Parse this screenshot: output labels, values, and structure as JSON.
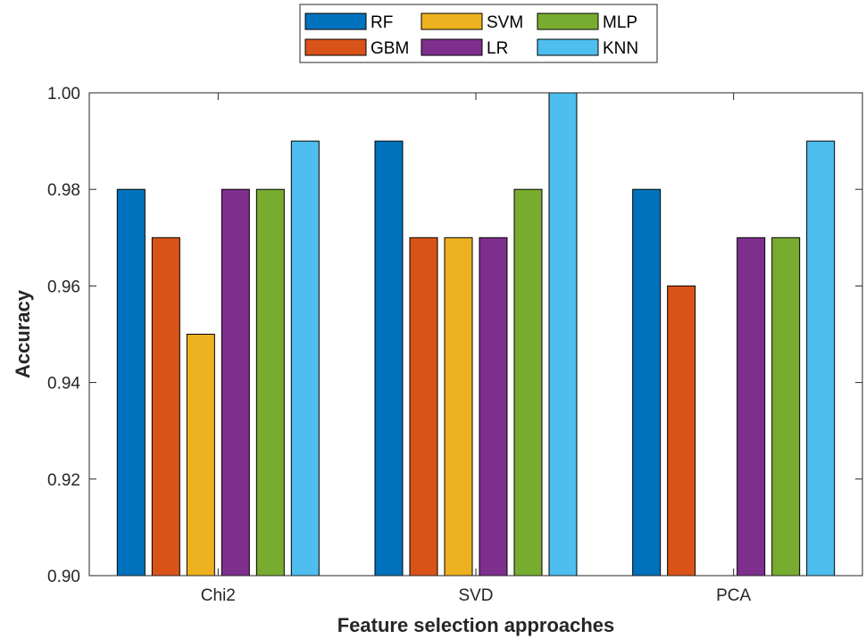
{
  "chart_data": {
    "type": "bar",
    "categories": [
      "Chi2",
      "SVD",
      "PCA"
    ],
    "series": [
      {
        "name": "RF",
        "color": "#0072BD",
        "values": [
          0.98,
          0.99,
          0.98
        ]
      },
      {
        "name": "GBM",
        "color": "#D95319",
        "values": [
          0.97,
          0.97,
          0.96
        ]
      },
      {
        "name": "SVM",
        "color": "#EDB120",
        "values": [
          0.95,
          0.97,
          0.9
        ]
      },
      {
        "name": "LR",
        "color": "#7E2F8E",
        "values": [
          0.98,
          0.97,
          0.97
        ]
      },
      {
        "name": "MLP",
        "color": "#77AC30",
        "values": [
          0.98,
          0.98,
          0.97
        ]
      },
      {
        "name": "KNN",
        "color": "#4DBEEE",
        "values": [
          0.99,
          1.0,
          0.99
        ]
      }
    ],
    "xlabel": "Feature selection approaches",
    "ylabel": "Accuracy",
    "ylim": [
      0.9,
      1.0
    ],
    "yticks": [
      0.9,
      0.92,
      0.94,
      0.96,
      0.98,
      1.0
    ],
    "ytick_labels": [
      "0.90",
      "0.92",
      "0.94",
      "0.96",
      "0.98",
      "1.00"
    ],
    "grid": false,
    "legend": {
      "placement": "top-center, outside plot",
      "columns": 3,
      "order": [
        "RF",
        "SVM",
        "MLP",
        "GBM",
        "LR",
        "KNN"
      ]
    }
  }
}
